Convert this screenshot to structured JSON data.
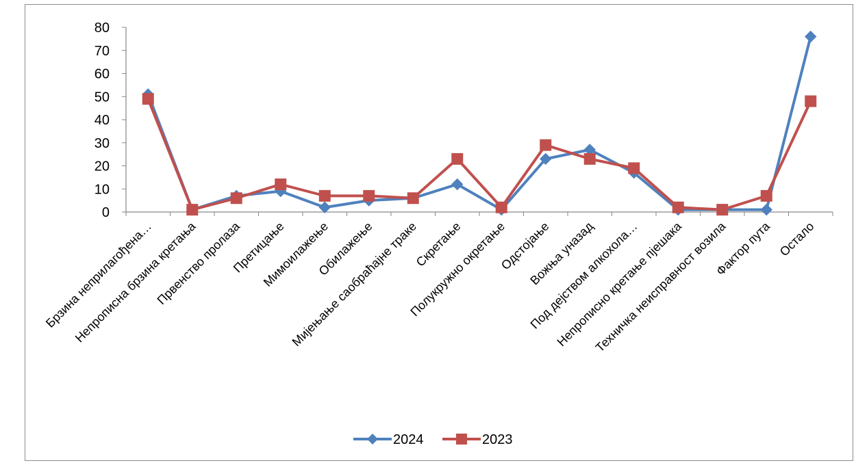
{
  "chart_data": {
    "type": "line",
    "title": "",
    "xlabel": "",
    "ylabel": "",
    "ylim": [
      0,
      80
    ],
    "yticks": [
      0,
      10,
      20,
      30,
      40,
      50,
      60,
      70,
      80
    ],
    "grid": false,
    "legend_position": "bottom",
    "categories": [
      "Брзина неприлагођена…",
      "Непрописна брзина кретања",
      "Првенство пролаза",
      "Претицање",
      "Мимоилажење",
      "Обилажење",
      "Мијењање саобраћајне траке",
      "Скретање",
      "Полукружно окретање",
      "Одстојање",
      "Вожња уназад",
      "Под дејством алкохола…",
      "Непрописно кретање пјешака",
      "Техничка неисправност возила",
      "Фактор пута",
      "Остало"
    ],
    "series": [
      {
        "name": "2024",
        "color": "#4f81bd",
        "marker": "diamond",
        "values": [
          51,
          1,
          7,
          9,
          2,
          5,
          6,
          12,
          1,
          23,
          27,
          17,
          1,
          1,
          1,
          76
        ]
      },
      {
        "name": "2023",
        "color": "#c0504d",
        "marker": "square",
        "values": [
          49,
          1,
          6,
          12,
          7,
          7,
          6,
          23,
          2,
          29,
          23,
          19,
          2,
          1,
          7,
          48
        ]
      }
    ]
  }
}
